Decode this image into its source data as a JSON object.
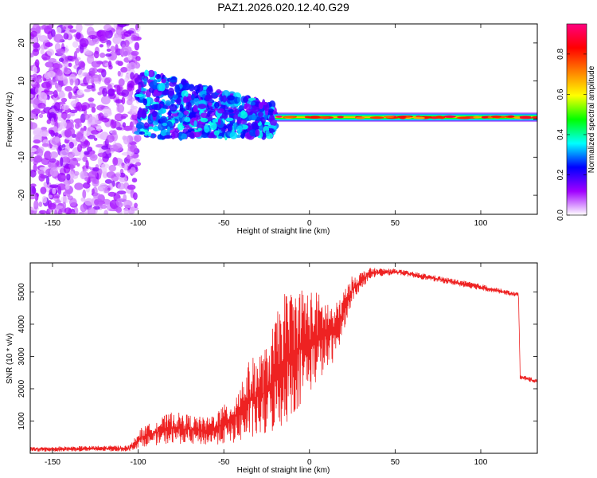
{
  "figure_title": "PAZ1.2026.020.12.40.G29",
  "chart_data": [
    {
      "type": "heatmap",
      "title": "PAZ1.2026.020.12.40.G29",
      "xlabel": "Height of straight line (km)",
      "ylabel": "Frequency (Hz)",
      "xlim": [
        -163,
        133
      ],
      "ylim": [
        -25,
        25
      ],
      "xticks": [
        -150,
        -100,
        -50,
        0,
        50,
        100
      ],
      "yticks": [
        -20,
        -10,
        0,
        10,
        20
      ],
      "colorbar": {
        "label": "Normalized spectral amplitude",
        "range": [
          0,
          0.95
        ],
        "ticks": [
          0.0,
          0.2,
          0.4,
          0.6,
          0.8
        ],
        "stops": [
          "#ffffff",
          "#a000ff",
          "#0000ff",
          "#00ffff",
          "#00ff00",
          "#ffff00",
          "#ff8000",
          "#ff0000",
          "#ff0080"
        ]
      },
      "regions": [
        {
          "x_start": -163,
          "x_end": -100,
          "freq_spread": [
            -25,
            25
          ],
          "amplitude": 0.1,
          "description": "scattered blobs"
        },
        {
          "x_start": -100,
          "x_end": -20,
          "freq_center_start": 5,
          "freq_center_end": 0,
          "amplitude": 0.25
        },
        {
          "x_start": -20,
          "x_end": 133,
          "freq_center": 0.5,
          "amplitude": 0.55
        }
      ]
    },
    {
      "type": "line",
      "xlabel": "Height of straight line (km)",
      "ylabel": "SNR (10 * v/v)",
      "xlim": [
        -163,
        133
      ],
      "ylim": [
        0,
        5900
      ],
      "xticks": [
        -150,
        -100,
        -50,
        0,
        50,
        100
      ],
      "yticks": [
        1000,
        2000,
        3000,
        4000,
        5000
      ],
      "color": "#ee2222",
      "envelope": [
        {
          "x": -163,
          "lo": 50,
          "hi": 200
        },
        {
          "x": -105,
          "lo": 60,
          "hi": 250
        },
        {
          "x": -98,
          "lo": 200,
          "hi": 800
        },
        {
          "x": -80,
          "lo": 300,
          "hi": 1300
        },
        {
          "x": -60,
          "lo": 250,
          "hi": 1100
        },
        {
          "x": -45,
          "lo": 300,
          "hi": 1700
        },
        {
          "x": -35,
          "lo": 400,
          "hi": 2900
        },
        {
          "x": -25,
          "lo": 500,
          "hi": 3300
        },
        {
          "x": -15,
          "lo": 800,
          "hi": 5000
        },
        {
          "x": -5,
          "lo": 1500,
          "hi": 5200
        },
        {
          "x": 5,
          "lo": 2200,
          "hi": 5000
        },
        {
          "x": 15,
          "lo": 2900,
          "hi": 4600
        },
        {
          "x": 25,
          "lo": 4700,
          "hi": 5500
        },
        {
          "x": 35,
          "lo": 5400,
          "hi": 5750
        },
        {
          "x": 50,
          "lo": 5550,
          "hi": 5720
        },
        {
          "x": 75,
          "lo": 5300,
          "hi": 5500
        },
        {
          "x": 100,
          "lo": 5050,
          "hi": 5250
        },
        {
          "x": 120,
          "lo": 4850,
          "hi": 5000
        },
        {
          "x": 122,
          "lo": 4850,
          "hi": 5000
        },
        {
          "x": 123,
          "lo": 2300,
          "hi": 2450
        },
        {
          "x": 133,
          "lo": 2150,
          "hi": 2300
        }
      ]
    }
  ]
}
